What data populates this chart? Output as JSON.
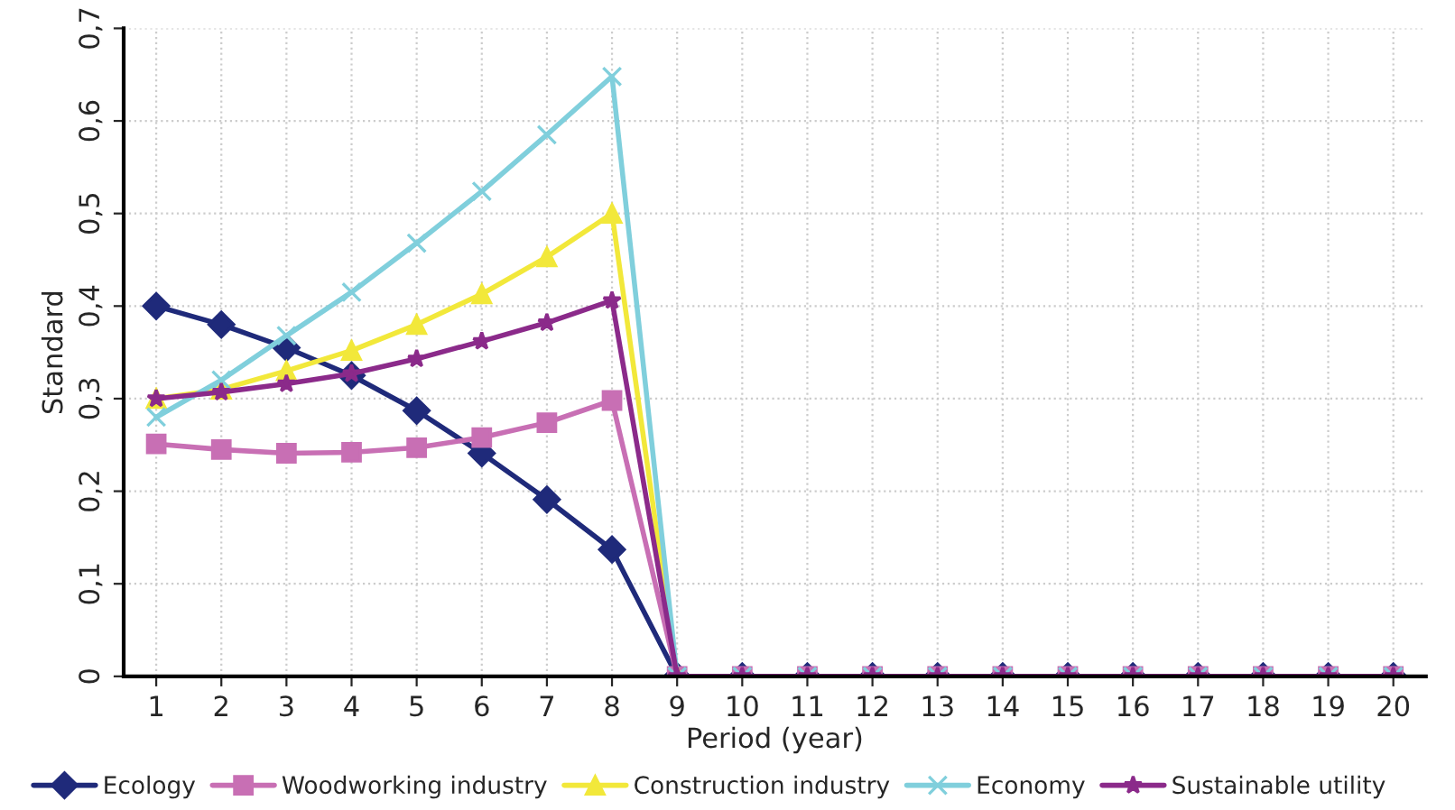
{
  "chart_data": {
    "type": "line",
    "xlabel": "Period (year)",
    "ylabel": "Standard",
    "categories": [
      "1",
      "2",
      "3",
      "4",
      "5",
      "6",
      "7",
      "8",
      "9",
      "10",
      "11",
      "12",
      "13",
      "14",
      "15",
      "16",
      "17",
      "18",
      "19",
      "20"
    ],
    "ylim": [
      0,
      0.7
    ],
    "yticks": [
      {
        "value": 0,
        "label": "0"
      },
      {
        "value": 0.1,
        "label": "0,1"
      },
      {
        "value": 0.2,
        "label": "0,2"
      },
      {
        "value": 0.3,
        "label": "0,3"
      },
      {
        "value": 0.4,
        "label": "0,4"
      },
      {
        "value": 0.5,
        "label": "0,5"
      },
      {
        "value": 0.6,
        "label": "0,6"
      },
      {
        "value": 0.7,
        "label": "0,7"
      }
    ],
    "grid": true,
    "legend": "bottom",
    "line_style": "solid",
    "series": [
      {
        "name": "Ecology",
        "color": "#1f2a7a",
        "marker": "diamond",
        "values": [
          0.4,
          0.38,
          0.355,
          0.325,
          0.287,
          0.241,
          0.191,
          0.137,
          0,
          0,
          0,
          0,
          0,
          0,
          0,
          0,
          0,
          0,
          0,
          0
        ]
      },
      {
        "name": "Woodworking industry",
        "color": "#c86fb4",
        "marker": "square",
        "values": [
          0.251,
          0.245,
          0.241,
          0.242,
          0.247,
          0.258,
          0.274,
          0.298,
          0,
          0,
          0,
          0,
          0,
          0,
          0,
          0,
          0,
          0,
          0,
          0
        ]
      },
      {
        "name": "Construction industry",
        "color": "#f2e83a",
        "marker": "triangle",
        "values": [
          0.3,
          0.31,
          0.33,
          0.352,
          0.38,
          0.413,
          0.453,
          0.5,
          0,
          null,
          null,
          null,
          null,
          null,
          null,
          null,
          null,
          null,
          null,
          null
        ]
      },
      {
        "name": "Economy",
        "color": "#80cfdc",
        "marker": "cross",
        "values": [
          0.28,
          0.32,
          0.368,
          0.415,
          0.468,
          0.524,
          0.585,
          0.648,
          0,
          0,
          0,
          0,
          0,
          0,
          0,
          0,
          0,
          0,
          0,
          0
        ]
      },
      {
        "name": "Sustainable utility",
        "color": "#8b2a8a",
        "marker": "star",
        "values": [
          0.3,
          0.307,
          0.316,
          0.327,
          0.343,
          0.362,
          0.382,
          0.406,
          0,
          0,
          0,
          0,
          0,
          0,
          0,
          0,
          0,
          0,
          0,
          0
        ]
      }
    ]
  }
}
